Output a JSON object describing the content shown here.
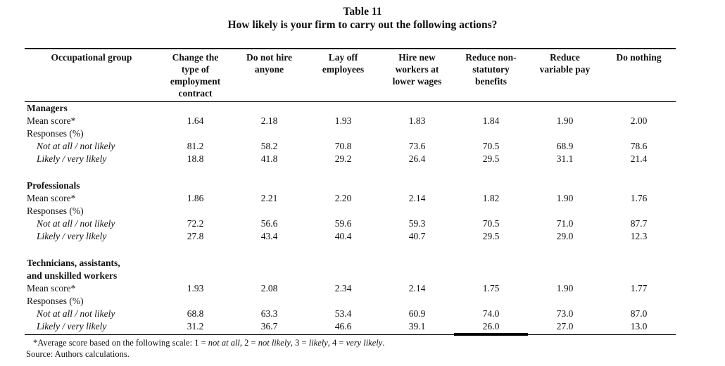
{
  "page": {
    "title": "Table 11",
    "subtitle": "How likely is your firm to carry out the following actions?"
  },
  "table": {
    "columns": [
      "Occupational group",
      "Change the\ntype of\nemployment\ncontract",
      "Do not hire\nanyone",
      "Lay off\nemployees",
      "Hire new\nworkers at\nlower wages",
      "Reduce non-\nstatutory\nbenefits",
      "Reduce\nvariable pay",
      "Do nothing"
    ],
    "rows": [
      {
        "type": "group",
        "label": "Managers",
        "cells": [
          "",
          "",
          "",
          "",
          "",
          "",
          ""
        ]
      },
      {
        "type": "plain",
        "label": "Mean score*",
        "cells": [
          "1.64",
          "2.18",
          "1.93",
          "1.83",
          "1.84",
          "1.90",
          "2.00"
        ]
      },
      {
        "type": "plain",
        "label": "Responses (%)",
        "cells": [
          "",
          "",
          "",
          "",
          "",
          "",
          ""
        ]
      },
      {
        "type": "italic",
        "label": "Not at all / not likely",
        "cells": [
          "81.2",
          "58.2",
          "70.8",
          "73.6",
          "70.5",
          "68.9",
          "78.6"
        ]
      },
      {
        "type": "italic",
        "label": "Likely / very likely",
        "cells": [
          "18.8",
          "41.8",
          "29.2",
          "26.4",
          "29.5",
          "31.1",
          "21.4"
        ]
      },
      {
        "type": "spacer"
      },
      {
        "type": "group",
        "label": "Professionals",
        "cells": [
          "",
          "",
          "",
          "",
          "",
          "",
          ""
        ]
      },
      {
        "type": "plain",
        "label": "Mean score*",
        "cells": [
          "1.86",
          "2.21",
          "2.20",
          "2.14",
          "1.82",
          "1.90",
          "1.76"
        ]
      },
      {
        "type": "plain",
        "label": "Responses (%)",
        "cells": [
          "",
          "",
          "",
          "",
          "",
          "",
          ""
        ]
      },
      {
        "type": "italic",
        "label": "Not at all / not likely",
        "cells": [
          "72.2",
          "56.6",
          "59.6",
          "59.3",
          "70.5",
          "71.0",
          "87.7"
        ]
      },
      {
        "type": "italic",
        "label": "Likely / very likely",
        "cells": [
          "27.8",
          "43.4",
          "40.4",
          "40.7",
          "29.5",
          "29.0",
          "12.3"
        ]
      },
      {
        "type": "spacer"
      },
      {
        "type": "group",
        "label": "Technicians, assistants,\nand unskilled workers",
        "cells": [
          "",
          "",
          "",
          "",
          "",
          "",
          ""
        ]
      },
      {
        "type": "plain",
        "label": "Mean score*",
        "cells": [
          "1.93",
          "2.08",
          "2.34",
          "2.14",
          "1.75",
          "1.90",
          "1.77"
        ]
      },
      {
        "type": "plain",
        "label": "Responses (%)",
        "cells": [
          "",
          "",
          "",
          "",
          "",
          "",
          ""
        ]
      },
      {
        "type": "italic",
        "label": "Not at all / not likely",
        "cells": [
          "68.8",
          "63.3",
          "53.4",
          "60.9",
          "74.0",
          "73.0",
          "87.0"
        ]
      },
      {
        "type": "italic",
        "label": "Likely / very likely",
        "cells": [
          "31.2",
          "36.7",
          "46.6",
          "39.1",
          "26.0",
          "27.0",
          "13.0"
        ],
        "underline_cells": [
          4
        ]
      }
    ]
  },
  "footnotes": {
    "scale_note_parts": [
      {
        "text": "*Average score based on the following scale: 1 = ",
        "italic": false
      },
      {
        "text": "not at all",
        "italic": true
      },
      {
        "text": ", 2 = ",
        "italic": false
      },
      {
        "text": "not likely",
        "italic": true
      },
      {
        "text": ", 3 = ",
        "italic": false
      },
      {
        "text": "likely",
        "italic": true
      },
      {
        "text": ", 4 = ",
        "italic": false
      },
      {
        "text": "very likely",
        "italic": true
      },
      {
        "text": ".",
        "italic": false
      }
    ],
    "source": "Source: Authors calculations."
  }
}
